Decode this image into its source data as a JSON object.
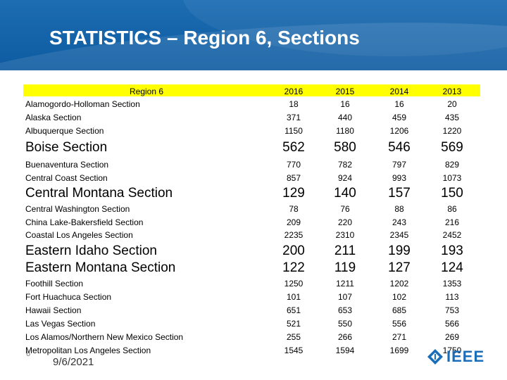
{
  "title": "STATISTICS – Region 6, Sections",
  "table": {
    "header": {
      "label": "Region 6",
      "years": [
        "2016",
        "2015",
        "2014",
        "2013"
      ]
    },
    "rows": [
      {
        "name": "Alamogordo-Holloman Section",
        "values": [
          "18",
          "16",
          "16",
          "20"
        ]
      },
      {
        "name": "Alaska Section",
        "values": [
          "371",
          "440",
          "459",
          "435"
        ]
      },
      {
        "name": "Albuquerque Section",
        "values": [
          "1150",
          "1180",
          "1206",
          "1220"
        ]
      },
      {
        "name": "Boise Section",
        "values": [
          "562",
          "580",
          "546",
          "569"
        ]
      },
      {
        "name": "Buenaventura Section",
        "values": [
          "770",
          "782",
          "797",
          "829"
        ]
      },
      {
        "name": "Central Coast Section",
        "values": [
          "857",
          "924",
          "993",
          "1073"
        ]
      },
      {
        "name": "Central Montana Section",
        "values": [
          "129",
          "140",
          "157",
          "150"
        ]
      },
      {
        "name": "Central Washington Section",
        "values": [
          "78",
          "76",
          "88",
          "86"
        ]
      },
      {
        "name": "China Lake-Bakersfield Section",
        "values": [
          "209",
          "220",
          "243",
          "216"
        ]
      },
      {
        "name": "Coastal Los Angeles Section",
        "values": [
          "2235",
          "2310",
          "2345",
          "2452"
        ]
      },
      {
        "name": "Eastern Idaho Section",
        "values": [
          "200",
          "211",
          "199",
          "193"
        ]
      },
      {
        "name": "Eastern Montana Section",
        "values": [
          "122",
          "119",
          "127",
          "124"
        ]
      },
      {
        "name": "Foothill Section",
        "values": [
          "1250",
          "1211",
          "1202",
          "1353"
        ]
      },
      {
        "name": "Fort Huachuca Section",
        "values": [
          "101",
          "107",
          "102",
          "113"
        ]
      },
      {
        "name": "Hawaii Section",
        "values": [
          "651",
          "653",
          "685",
          "753"
        ]
      },
      {
        "name": "Las Vegas Section",
        "values": [
          "521",
          "550",
          "556",
          "566"
        ]
      },
      {
        "name": "Los Alamos/Northern New Mexico Section",
        "values": [
          "255",
          "266",
          "271",
          "269"
        ]
      },
      {
        "name": "Metropolitan Los Angeles Section",
        "values": [
          "1545",
          "1594",
          "1699",
          "1750"
        ]
      }
    ]
  },
  "footer": {
    "slide_number": "6",
    "date": "9/6/2021",
    "logo_text": "IEEE"
  },
  "colors": {
    "header_blue": "#0d5aa0",
    "highlight_yellow": "#ffff00",
    "logo_blue": "#1a6db8"
  }
}
